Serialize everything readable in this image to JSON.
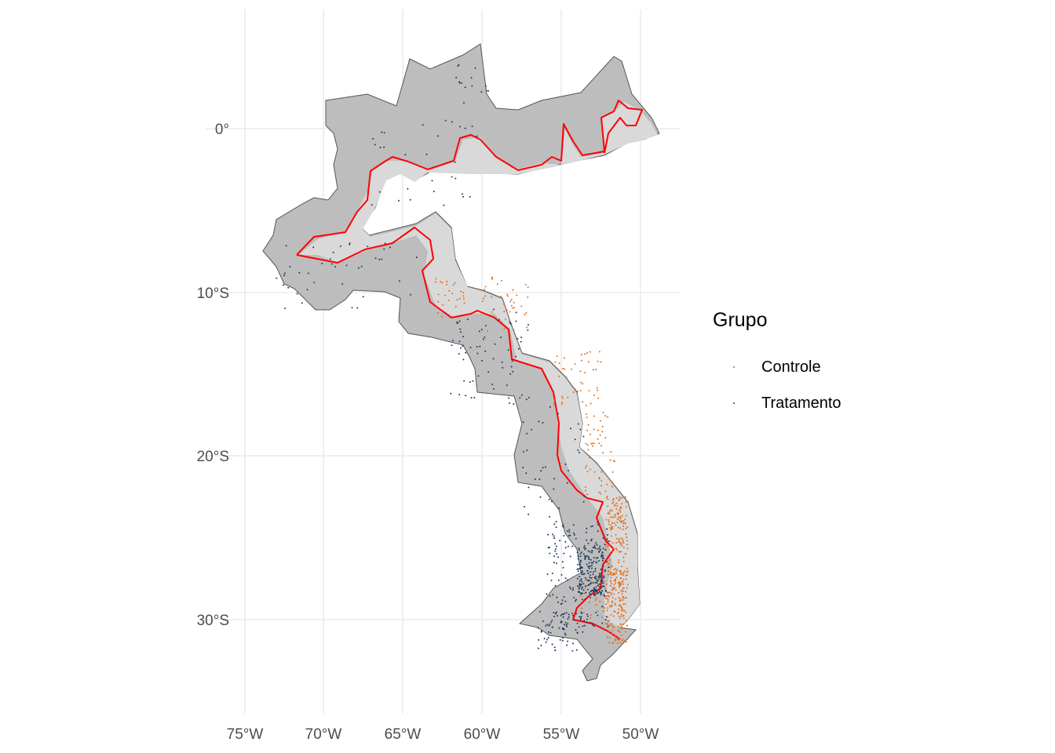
{
  "chart_data": {
    "type": "scatter",
    "subtype": "map",
    "title": "",
    "xlabel": "",
    "ylabel": "",
    "x_ticks": [
      {
        "value": -75,
        "label": "75°W"
      },
      {
        "value": -70,
        "label": "70°W"
      },
      {
        "value": -65,
        "label": "65°W"
      },
      {
        "value": -60,
        "label": "60°W"
      },
      {
        "value": -55,
        "label": "55°W"
      },
      {
        "value": -50,
        "label": "50°W"
      }
    ],
    "y_ticks": [
      {
        "value": 0,
        "label": "0°"
      },
      {
        "value": -10,
        "label": "10°S"
      },
      {
        "value": -20,
        "label": "20°S"
      },
      {
        "value": -30,
        "label": "30°S"
      }
    ],
    "xlim": [
      -77.5,
      -47.5
    ],
    "ylim": [
      -35.5,
      7.5
    ],
    "grid": true,
    "legend": {
      "title": "Grupo",
      "position": "right",
      "entries": [
        {
          "name": "Controle",
          "color": "#e36c1a"
        },
        {
          "name": "Tratamento",
          "color": "#1f3a5f"
        }
      ]
    },
    "colors": {
      "region_fill": "#bdbdbd",
      "region_stroke": "#555555",
      "inner_fill": "#d9d9d9",
      "boundary_line": "#ff0000"
    },
    "series": [
      {
        "name": "Controle",
        "color": "#e36c1a",
        "clusters": [
          {
            "lon": [
              -52.2,
              -50.8
            ],
            "lat": [
              -31.5,
              -22.5
            ],
            "n": 300
          },
          {
            "lon": [
              -53.8,
              -51.0
            ],
            "lat": [
              -30.0,
              -27.0
            ],
            "n": 60
          },
          {
            "lon": [
              -53.5,
              -51.6
            ],
            "lat": [
              -22.5,
              -17.0
            ],
            "n": 55
          },
          {
            "lon": [
              -55.5,
              -52.5
            ],
            "lat": [
              -17.0,
              -13.5
            ],
            "n": 45
          },
          {
            "lon": [
              -60.0,
              -57.0
            ],
            "lat": [
              -12.5,
              -9.0
            ],
            "n": 40
          },
          {
            "lon": [
              -63.0,
              -61.0
            ],
            "lat": [
              -11.5,
              -9.0
            ],
            "n": 25
          }
        ]
      },
      {
        "name": "Tratamento",
        "color": "#1f3a5f",
        "clusters": [
          {
            "lon": [
              -54.0,
              -52.3
            ],
            "lat": [
              -28.5,
              -25.5
            ],
            "n": 170
          },
          {
            "lon": [
              -56.0,
              -52.0
            ],
            "lat": [
              -30.5,
              -24.0
            ],
            "n": 170
          },
          {
            "lon": [
              -56.5,
              -53.5
            ],
            "lat": [
              -32.0,
              -29.5
            ],
            "n": 60
          },
          {
            "lon": [
              -57.5,
              -53.5
            ],
            "lat": [
              -24.5,
              -17.0
            ],
            "n": 40
          },
          {
            "lon": [
              -62.0,
              -57.0
            ],
            "lat": [
              -17.0,
              -11.0
            ],
            "n": 70
          },
          {
            "lon": [
              -73.0,
              -64.0
            ],
            "lat": [
              -11.0,
              -7.0
            ],
            "n": 40
          },
          {
            "lon": [
              -67.0,
              -60.0
            ],
            "lat": [
              -5.0,
              0.5
            ],
            "n": 30
          },
          {
            "lon": [
              -62.0,
              -59.5
            ],
            "lat": [
              1.5,
              4.0
            ],
            "n": 15
          }
        ]
      }
    ]
  }
}
